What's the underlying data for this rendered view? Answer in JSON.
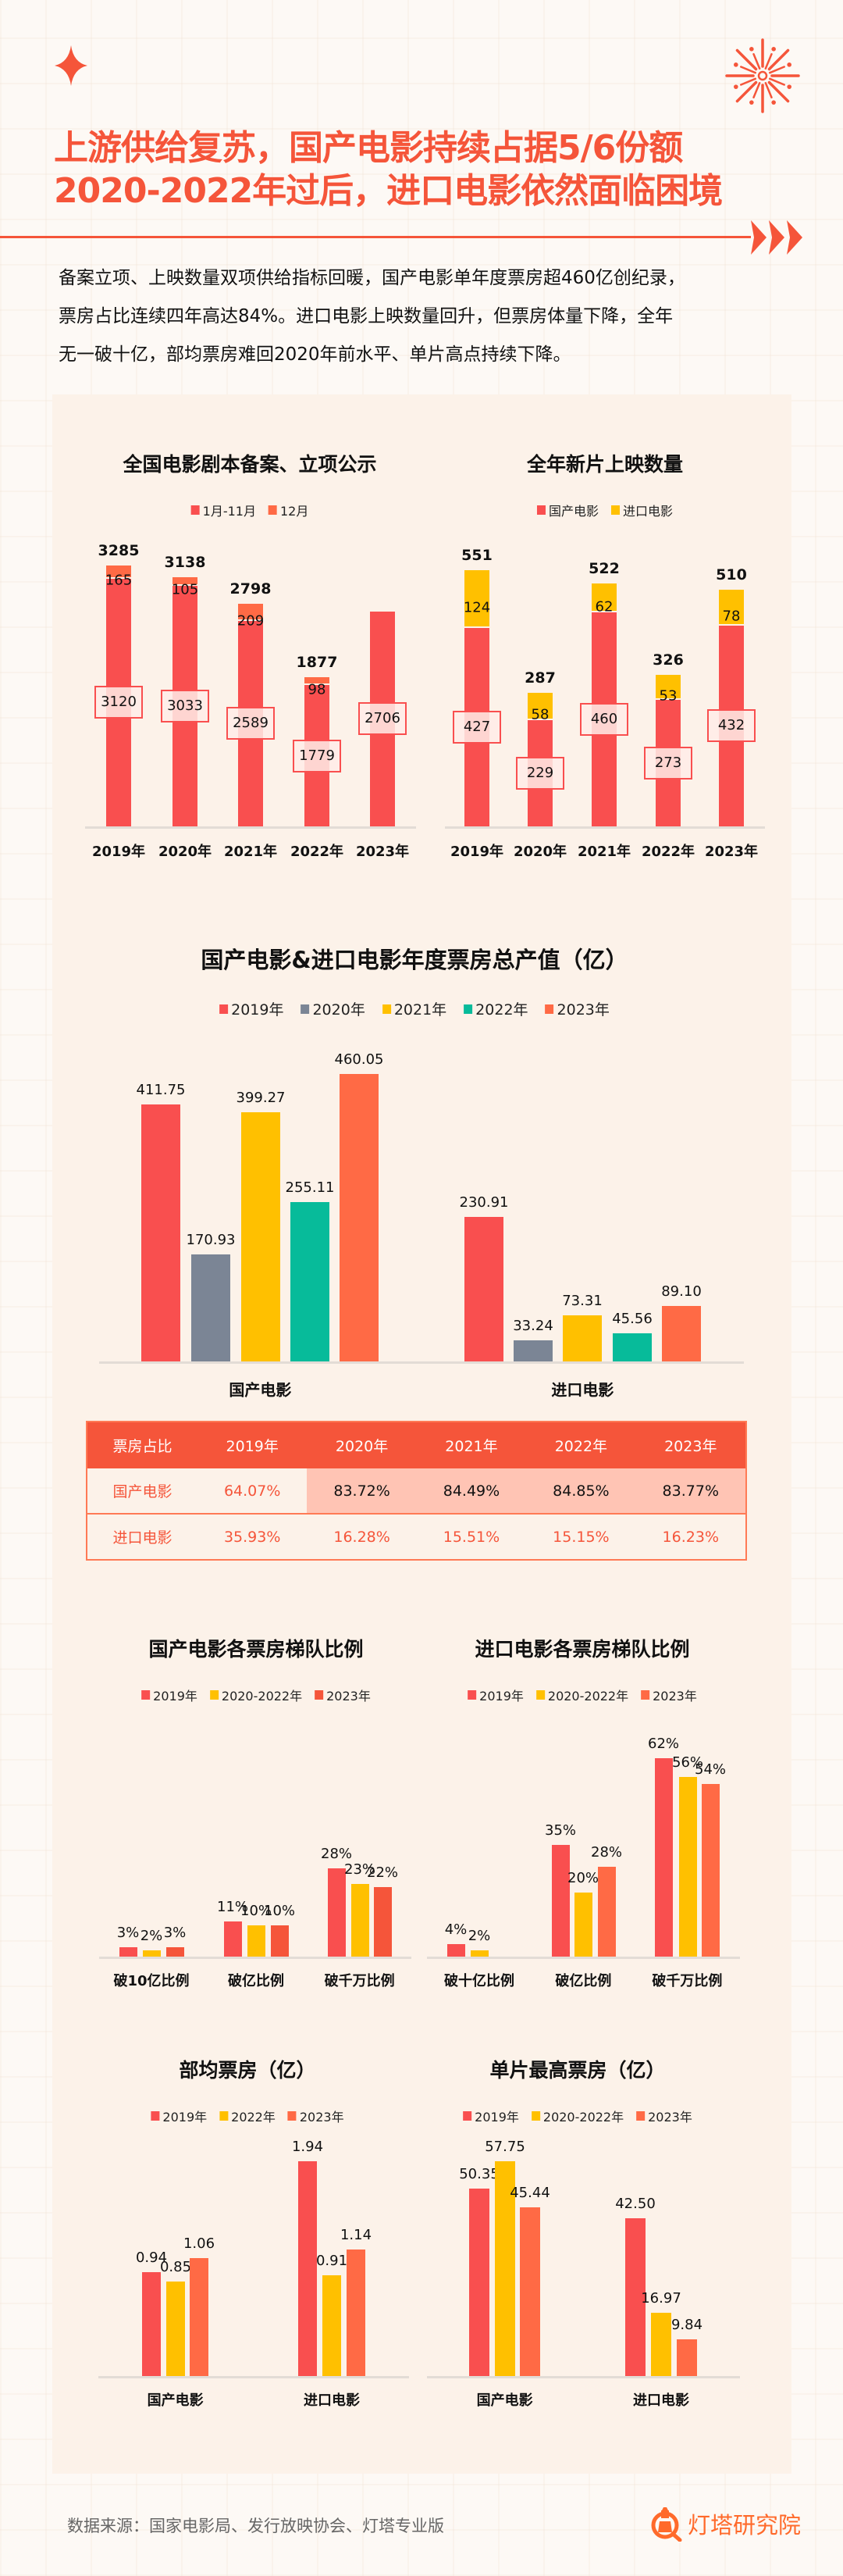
{
  "header": {
    "title_line1": "上游供给复苏，国产电影持续占据5/6份额",
    "title_line2": "2020-2022年过后，进口电影依然面临困境",
    "summary_lines": [
      "备案立项、上映数量双项供给指标回暖，国产电影单年度票房超460亿创纪录，",
      "票房占比连续四年高达84%。进口电影上映数量回升，但票房体量下降，全年",
      "无一破十亿，部均票房难回2020年前水平、单片高点持续下降。"
    ],
    "icons": [
      "sparkle-star-icon",
      "firework-icon",
      "triple-arrow-icon"
    ]
  },
  "colors": {
    "accent": "#f5553a",
    "red": "#f94f4f",
    "orange": "#ff6a45",
    "gold": "#ffc000",
    "slate": "#7b8595",
    "teal": "#07bb9a",
    "card": "#fcf2e9"
  },
  "chart_data": [
    {
      "type": "bar",
      "stacked": true,
      "title": "全国电影剧本备案、立项公示",
      "categories": [
        "2019年",
        "2020年",
        "2021年",
        "2022年",
        "2023年"
      ],
      "series": [
        {
          "name": "1月-11月",
          "values": [
            3120,
            3033,
            2589,
            1779,
            2706
          ],
          "color": "#f94f4f"
        },
        {
          "name": "12月",
          "values": [
            165,
            105,
            209,
            98,
            null
          ],
          "color": "#ff6a45"
        }
      ],
      "totals": [
        3285,
        3138,
        2798,
        1877,
        null
      ],
      "grid": false,
      "legend": "top"
    },
    {
      "type": "bar",
      "stacked": true,
      "title": "全年新片上映数量",
      "categories": [
        "2019年",
        "2020年",
        "2021年",
        "2022年",
        "2023年"
      ],
      "series": [
        {
          "name": "国产电影",
          "values": [
            427,
            229,
            460,
            273,
            432
          ],
          "color": "#f94f4f"
        },
        {
          "name": "进口电影",
          "values": [
            124,
            58,
            62,
            53,
            78
          ],
          "color": "#ffc000"
        }
      ],
      "totals": [
        551,
        287,
        522,
        326,
        510
      ],
      "grid": false,
      "legend": "top"
    },
    {
      "type": "bar",
      "title": "国产电影&进口电影年度票房总产值（亿）",
      "categories": [
        "国产电影",
        "进口电影"
      ],
      "series": [
        {
          "name": "2019年",
          "values": [
            "411.75",
            "230.91"
          ],
          "color": "#f94f4f"
        },
        {
          "name": "2020年",
          "values": [
            "170.93",
            "33.24"
          ],
          "color": "#7b8595"
        },
        {
          "name": "2021年",
          "values": [
            "399.27",
            "73.31"
          ],
          "color": "#ffc000"
        },
        {
          "name": "2022年",
          "values": [
            "255.11",
            "45.56"
          ],
          "color": "#07bb9a"
        },
        {
          "name": "2023年",
          "values": [
            "460.05",
            "89.10"
          ],
          "color": "#ff6a45"
        }
      ],
      "grid": false,
      "legend": "top"
    },
    {
      "type": "bar",
      "title": "国产电影各票房梯队比例",
      "categories": [
        "破10亿比例",
        "破亿比例",
        "破千万比例"
      ],
      "series": [
        {
          "name": "2019年",
          "values": [
            3,
            11,
            28
          ],
          "color": "#f94f4f"
        },
        {
          "name": "2020-2022年",
          "values": [
            2,
            10,
            23
          ],
          "color": "#ffc000"
        },
        {
          "name": "2023年",
          "values": [
            3,
            10,
            22
          ],
          "color": "#f5553a"
        }
      ],
      "unit": "%",
      "grid": false,
      "legend": "top"
    },
    {
      "type": "bar",
      "title": "进口电影各票房梯队比例",
      "categories": [
        "破十亿比例",
        "破亿比例",
        "破千万比例"
      ],
      "series": [
        {
          "name": "2019年",
          "values": [
            4,
            35,
            62
          ],
          "color": "#f94f4f"
        },
        {
          "name": "2020-2022年",
          "values": [
            2,
            20,
            56
          ],
          "color": "#ffc000"
        },
        {
          "name": "2023年",
          "values": [
            null,
            28,
            54
          ],
          "color": "#ff6a45"
        }
      ],
      "unit": "%",
      "grid": false,
      "legend": "top"
    },
    {
      "type": "bar",
      "title": "部均票房（亿）",
      "categories": [
        "国产电影",
        "进口电影"
      ],
      "series": [
        {
          "name": "2019年",
          "values": [
            "0.94",
            "1.94"
          ],
          "color": "#f94f4f"
        },
        {
          "name": "2022年",
          "values": [
            "0.85",
            "0.91"
          ],
          "color": "#ffc000"
        },
        {
          "name": "2023年",
          "values": [
            "1.06",
            "1.14"
          ],
          "color": "#ff6a45"
        }
      ],
      "grid": false,
      "legend": "top"
    },
    {
      "type": "bar",
      "title": "单片最高票房（亿）",
      "categories": [
        "国产电影",
        "进口电影"
      ],
      "series": [
        {
          "name": "2019年",
          "values": [
            "50.35",
            "42.50"
          ],
          "color": "#f94f4f"
        },
        {
          "name": "2020-2022年",
          "values": [
            "57.75",
            "16.97"
          ],
          "color": "#ffc000"
        },
        {
          "name": "2023年",
          "values": [
            "45.44",
            "9.84"
          ],
          "color": "#ff6a45"
        }
      ],
      "grid": false,
      "legend": "top"
    }
  ],
  "share_table": {
    "header": [
      "票房占比",
      "2019年",
      "2020年",
      "2021年",
      "2022年",
      "2023年"
    ],
    "rows": [
      [
        "国产电影",
        "64.07%",
        "83.72%",
        "84.49%",
        "84.85%",
        "83.77%"
      ],
      [
        "进口电影",
        "35.93%",
        "16.28%",
        "15.51%",
        "15.15%",
        "16.23%"
      ]
    ]
  },
  "footer": {
    "source": "数据来源：国家电影局、发行放映协会、灯塔专业版",
    "logo_text": "灯塔研究院",
    "logo_icon": "lighthouse-magnifier-icon"
  }
}
